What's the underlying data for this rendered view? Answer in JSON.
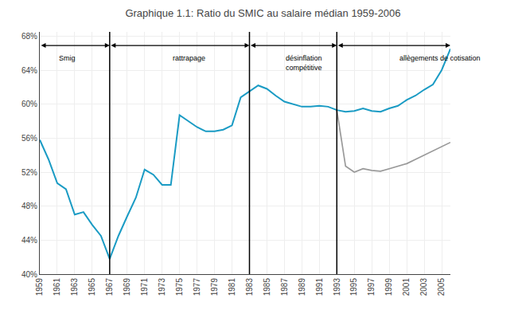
{
  "chart_data": {
    "type": "line",
    "title": "Graphique 1.1: Ratio du SMIC au salaire médian 1959-2006",
    "x": [
      1959,
      1960,
      1961,
      1962,
      1963,
      1964,
      1965,
      1966,
      1967,
      1968,
      1969,
      1970,
      1971,
      1972,
      1973,
      1974,
      1975,
      1976,
      1977,
      1978,
      1979,
      1980,
      1981,
      1982,
      1983,
      1984,
      1985,
      1986,
      1987,
      1988,
      1989,
      1990,
      1991,
      1992,
      1993,
      1994,
      1995,
      1996,
      1997,
      1998,
      1999,
      2000,
      2001,
      2002,
      2003,
      2004,
      2005,
      2006
    ],
    "series": [
      {
        "color": "#1a9bc4",
        "values": [
          0.558,
          0.535,
          0.507,
          0.5,
          0.47,
          0.473,
          0.458,
          0.445,
          0.418,
          0.445,
          0.468,
          0.49,
          0.523,
          0.517,
          0.505,
          0.505,
          0.587,
          0.58,
          0.573,
          0.568,
          0.568,
          0.57,
          0.575,
          0.608,
          0.615,
          0.622,
          0.618,
          0.61,
          0.603,
          0.6,
          0.597,
          0.597,
          0.598,
          0.597,
          0.593,
          0.591,
          0.592,
          0.595,
          0.592,
          0.591,
          0.595,
          0.598,
          0.605,
          0.61,
          0.617,
          0.623,
          0.64,
          0.665
        ]
      },
      {
        "color": "#999999",
        "values": [
          null,
          null,
          null,
          null,
          null,
          null,
          null,
          null,
          null,
          null,
          null,
          null,
          null,
          null,
          null,
          null,
          null,
          null,
          null,
          null,
          null,
          null,
          null,
          null,
          null,
          null,
          null,
          null,
          null,
          null,
          null,
          null,
          null,
          null,
          0.593,
          0.527,
          0.52,
          0.524,
          0.522,
          0.521,
          0.524,
          0.527,
          0.53,
          0.535,
          0.54,
          0.545,
          0.55,
          0.555
        ]
      }
    ],
    "xlim": [
      1959,
      2006
    ],
    "xticks": [
      1959,
      1961,
      1963,
      1965,
      1967,
      1969,
      1971,
      1973,
      1975,
      1977,
      1979,
      1981,
      1983,
      1985,
      1987,
      1989,
      1991,
      1993,
      1995,
      1997,
      1999,
      2001,
      2003,
      2005
    ],
    "ylim": [
      0.4,
      0.685
    ],
    "yticks": [
      {
        "value": 0.4,
        "label": "40%"
      },
      {
        "value": 0.44,
        "label": "44%"
      },
      {
        "value": 0.48,
        "label": "48%"
      },
      {
        "value": 0.52,
        "label": "52%"
      },
      {
        "value": 0.56,
        "label": "56%"
      },
      {
        "value": 0.6,
        "label": "60%"
      },
      {
        "value": 0.64,
        "label": "64%"
      },
      {
        "value": 0.68,
        "label": "68%"
      }
    ],
    "grid": true,
    "vertical_lines": [
      1967,
      1983,
      1993
    ],
    "arrows": [
      {
        "x": [
          1959,
          1967
        ],
        "y": 0.669
      },
      {
        "x": [
          1967,
          1983
        ],
        "y": 0.669
      },
      {
        "x": [
          1983,
          1993
        ],
        "y": 0.669
      },
      {
        "x": [
          1993,
          2006
        ],
        "y": 0.669
      }
    ],
    "annotations": [
      {
        "text": "Smig",
        "x": 1961,
        "y": 0.661
      },
      {
        "text": "rattrapage",
        "x": 1974,
        "y": 0.661
      },
      {
        "text": "désinflation\ncompétitive",
        "x": 1987,
        "y": 0.661
      },
      {
        "text": "allègements de cotisation",
        "x": 2000,
        "y": 0.661
      }
    ]
  }
}
